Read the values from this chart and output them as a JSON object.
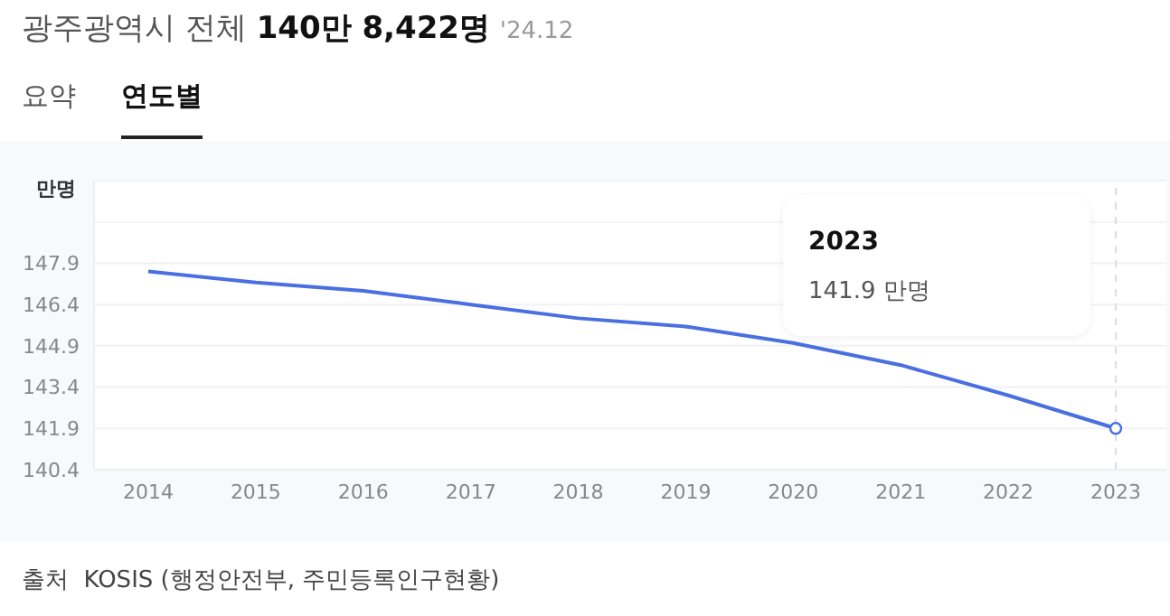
{
  "chart_data": {
    "type": "line",
    "title": "광주광역시 전체",
    "subtitle": "140만 8,422명",
    "ylabel": "만명",
    "annotations": [
      "'24.12",
      "요약",
      "연도별",
      "출처  KOSIS (행정안전부, 주민등록인구현황)",
      "2023",
      "141.9 만명"
    ],
    "categories": [
      "2014",
      "2015",
      "2016",
      "2017",
      "2018",
      "2019",
      "2020",
      "2021",
      "2022",
      "2023"
    ],
    "series": [
      {
        "color": "#4a6fe0",
        "values": [
          147.6,
          147.2,
          146.9,
          146.4,
          145.9,
          145.6,
          145.0,
          144.2,
          143.1,
          141.9
        ]
      }
    ],
    "ylim": [
      140.4,
      150.9
    ],
    "yticks": [
      140.4,
      141.9,
      143.4,
      144.9,
      146.4,
      147.9,
      {
        "value": 149.4,
        "label": null
      }
    ],
    "grid": "y",
    "marker": "none",
    "line_style": "solid",
    "ref_lines": [
      {
        "axis": "x",
        "value": "2023",
        "line_style": "dashed",
        "color": "#dddddd"
      }
    ]
  }
}
